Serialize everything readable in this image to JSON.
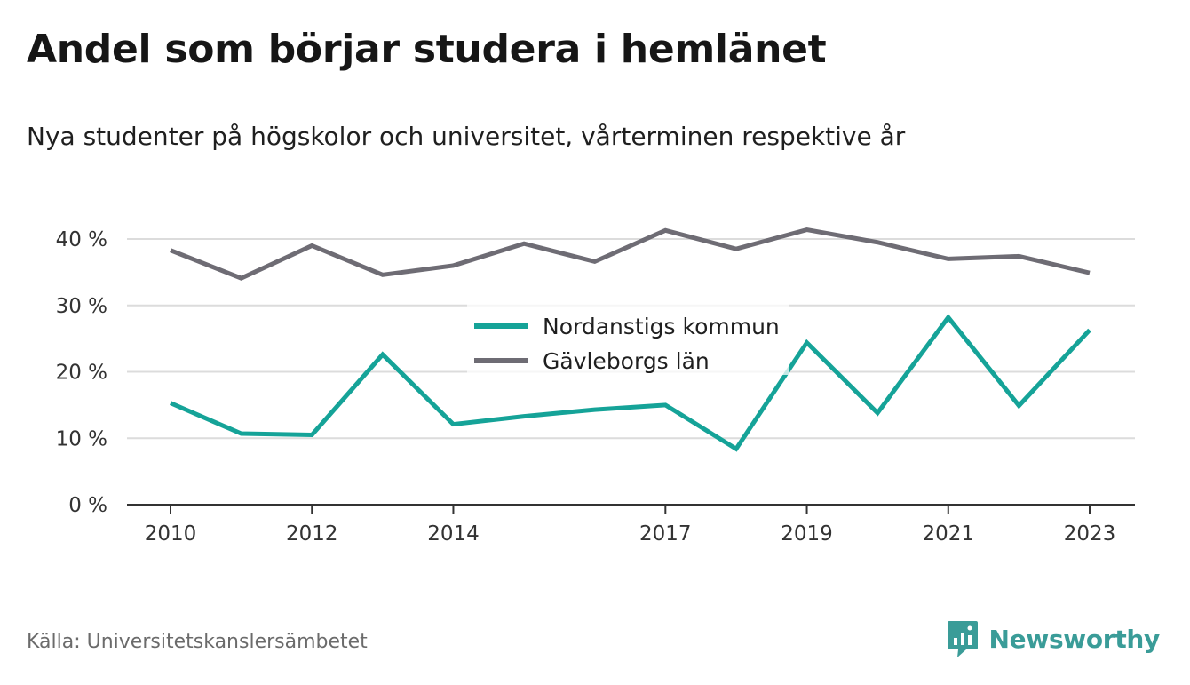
{
  "title": "Andel som börjar studera i hemlänet",
  "subtitle": "Nya studenter på högskolor och universitet, vårterminen respektive år",
  "source": "Källa: Universitetskanslersämbetet",
  "brand": {
    "name": "Newsworthy",
    "icon": "newsworthy-logo-icon",
    "color": "#3a9c98"
  },
  "chart_data": {
    "type": "line",
    "x": [
      2010,
      2011,
      2012,
      2013,
      2014,
      2015,
      2016,
      2017,
      2018,
      2019,
      2020,
      2021,
      2022,
      2023
    ],
    "x_tick_labels": [
      "2010",
      "2012",
      "2014",
      "2017",
      "2019",
      "2021",
      "2023"
    ],
    "y_ticks": [
      0,
      10,
      20,
      30,
      40
    ],
    "y_tick_labels": [
      "0 %",
      "10 %",
      "20 %",
      "30 %",
      "40 %"
    ],
    "ylim": [
      0,
      40
    ],
    "grid": true,
    "legend": "center",
    "series": [
      {
        "name": "Nordanstigs kommun",
        "color": "#15a398",
        "values": [
          15.3,
          10.7,
          10.5,
          22.6,
          12.1,
          13.3,
          14.3,
          15.0,
          8.4,
          24.4,
          13.8,
          28.2,
          14.9,
          26.3
        ]
      },
      {
        "name": "Gävleborgs län",
        "color": "#6e6c74",
        "values": [
          38.3,
          34.1,
          39.0,
          34.6,
          36.0,
          39.3,
          36.6,
          41.3,
          38.5,
          41.4,
          39.5,
          37.0,
          37.4,
          34.9
        ]
      }
    ]
  }
}
